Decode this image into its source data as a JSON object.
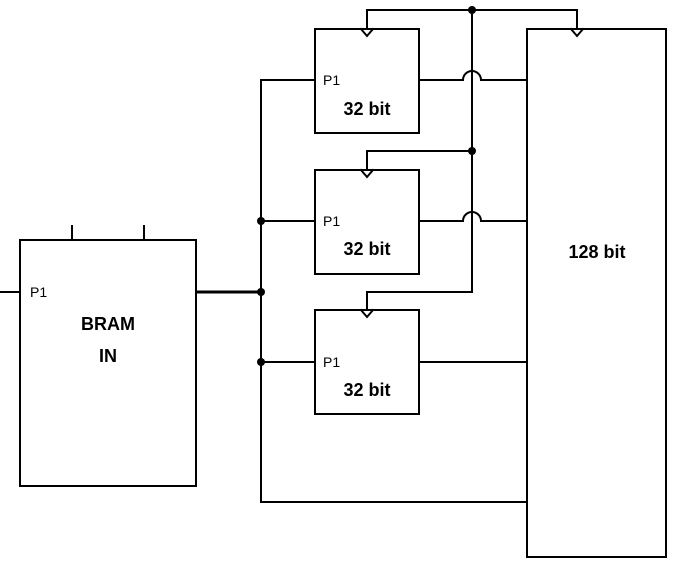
{
  "bram": {
    "port": "P1",
    "line1": "BRAM",
    "line2": "IN"
  },
  "registers": [
    {
      "port": "P1",
      "width": "32 bit"
    },
    {
      "port": "P1",
      "width": "32 bit"
    },
    {
      "port": "P1",
      "width": "32 bit"
    }
  ],
  "output": {
    "width": "128 bit"
  },
  "colors": {
    "stroke": "#000000",
    "background": "#ffffff"
  }
}
